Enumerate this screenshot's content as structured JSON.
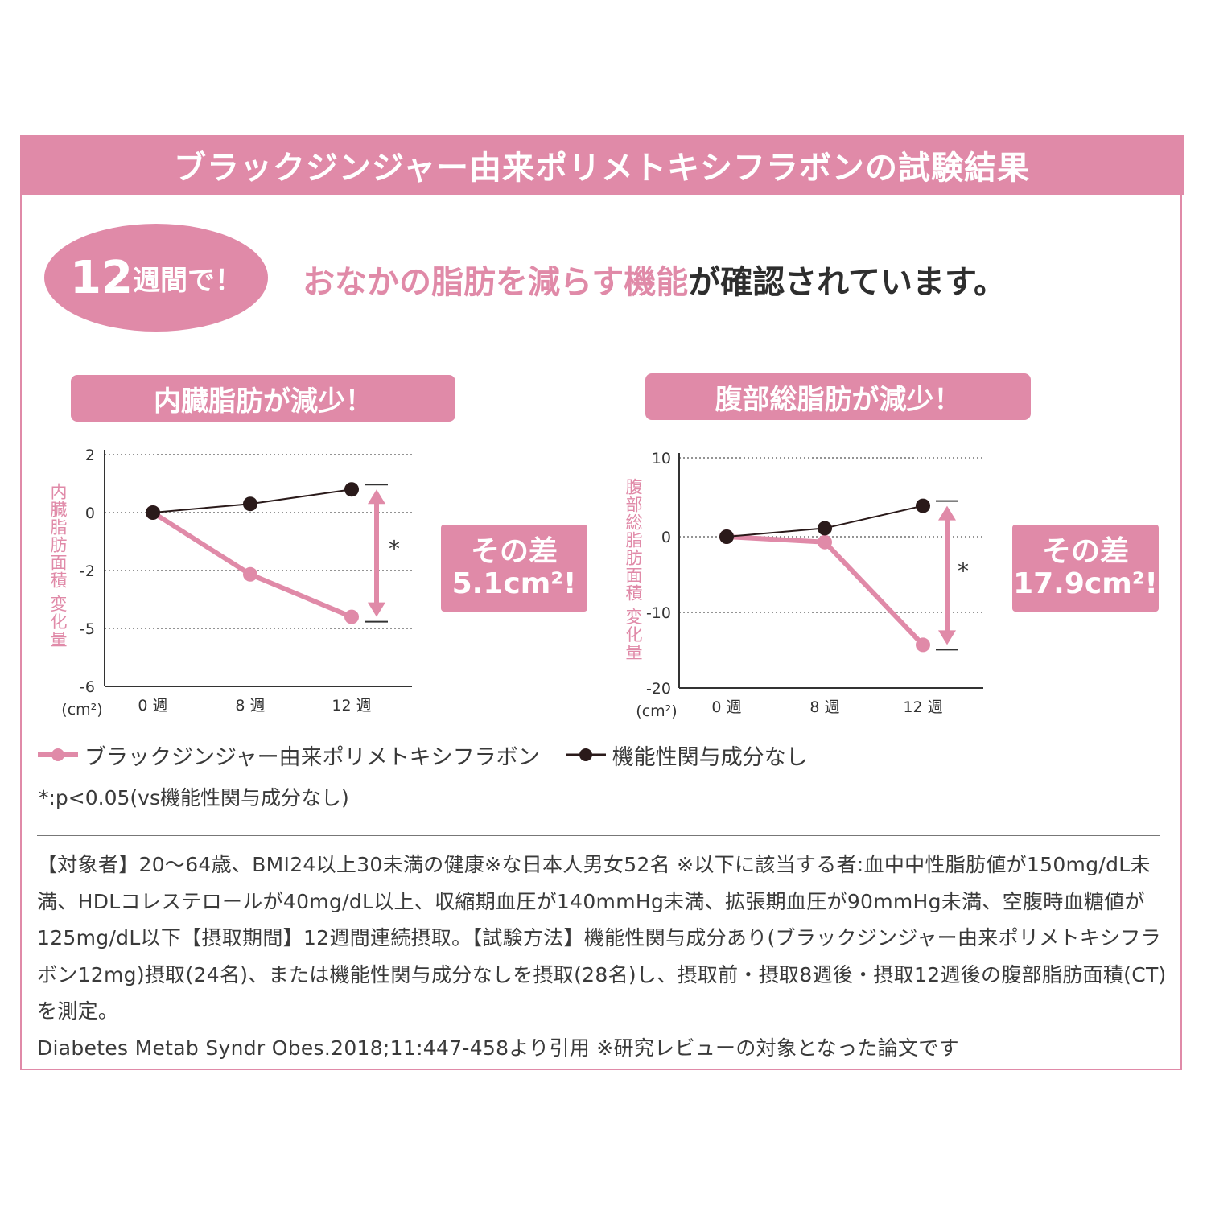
{
  "header": {
    "title": "ブラックジンジャー由来ポリメトキシフラボンの試験結果"
  },
  "badge": {
    "number": "12",
    "text": "週間で！"
  },
  "tagline": {
    "highlight": "おなかの脂肪を減らす機能",
    "rest": "が確認されています。"
  },
  "colors": {
    "accent": "#e08aa8",
    "dark": "#2a1a1a"
  },
  "chart_data": [
    {
      "type": "line",
      "title": "内臓脂肪が減少！",
      "ylabel": "内臓脂肪面積 変化量",
      "unit": "(cm²)",
      "categories": [
        "0 週",
        "8 週",
        "12 週"
      ],
      "y_ticks": [
        "2",
        "0",
        "-2",
        "-5",
        "-6"
      ],
      "series": [
        {
          "name": "ブラックジンジャー由来ポリメトキシフラボン",
          "values": [
            0,
            -2.2,
            -4.4
          ]
        },
        {
          "name": "機能性関与成分なし",
          "values": [
            0,
            0.3,
            0.8
          ]
        }
      ],
      "significance": "*",
      "difference": {
        "label": "その差",
        "value": "5.1cm²!"
      }
    },
    {
      "type": "line",
      "title": "腹部総脂肪が減少！",
      "ylabel": "腹部総脂肪面積 変化量",
      "unit": "(cm²)",
      "categories": [
        "0 週",
        "8 週",
        "12 週"
      ],
      "y_ticks": [
        "10",
        "0",
        "-10",
        "-20"
      ],
      "ylim": [
        -20,
        10
      ],
      "series": [
        {
          "name": "ブラックジンジャー由来ポリメトキシフラボン",
          "values": [
            0,
            -0.7,
            -14
          ]
        },
        {
          "name": "機能性関与成分なし",
          "values": [
            0,
            1.1,
            4
          ]
        }
      ],
      "significance": "*",
      "difference": {
        "label": "その差",
        "value": "17.9cm²!"
      }
    }
  ],
  "legend": {
    "pink_label": "ブラックジンジャー由来ポリメトキシフラボン",
    "dark_label": "機能性関与成分なし"
  },
  "note": "*:p<0.05(vs機能性関与成分なし)",
  "footnote": "【対象者】20〜64歳、BMI24以上30未満の健康※な日本人男女52名 ※以下に該当する者:血中中性脂肪値が150mg/dL未満、HDLコレステロールが40mg/dL以上、収縮期血圧が140mmHg未満、拡張期血圧が90mmHg未満、空腹時血糖値が125mg/dL以下【摂取期間】12週間連続摂取。【試験方法】機能性関与成分あり(ブラックジンジャー由来ポリメトキシフラボン12mg)摂取(24名)、または機能性関与成分なしを摂取(28名)し、摂取前・摂取8週後・摂取12週後の腹部脂肪面積(CT)を測定。",
  "citation": "Diabetes Metab Syndr Obes.2018;11:447-458より引用 ※研究レビューの対象となった論文です"
}
